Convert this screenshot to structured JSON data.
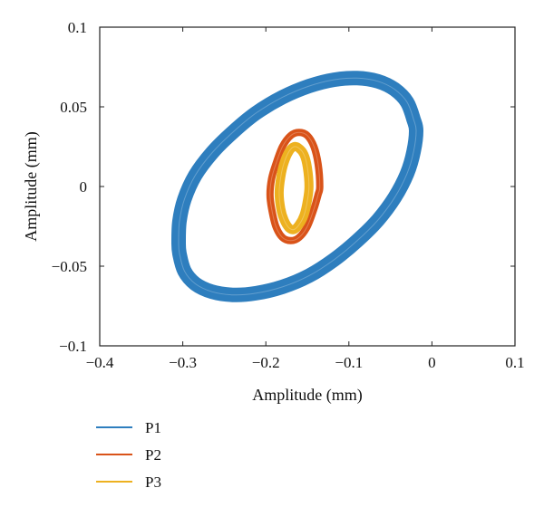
{
  "chart_data": {
    "type": "line",
    "title": "",
    "xlabel": "Amplitude (mm)",
    "ylabel": "Amplitude (mm)",
    "xlim": [
      -0.4,
      0.1
    ],
    "ylim": [
      -0.1,
      0.1
    ],
    "xticks": [
      -0.4,
      -0.3,
      -0.2,
      -0.1,
      0,
      0.1
    ],
    "xtick_labels": [
      "−0.4",
      "−0.3",
      "−0.2",
      "−0.1",
      "0",
      "0.1"
    ],
    "yticks": [
      -0.1,
      -0.05,
      0,
      0.05,
      0.1
    ],
    "ytick_labels": [
      "−0.1",
      "−0.05",
      "0",
      "0.05",
      "0.1"
    ],
    "grid": false,
    "legend_position": "bottom-left, outside plot",
    "series": [
      {
        "name": "P1",
        "color": "#2E7EBE",
        "x": [
          -0.305,
          -0.304,
          -0.298,
          -0.285,
          -0.265,
          -0.24,
          -0.212,
          -0.18,
          -0.148,
          -0.118,
          -0.09,
          -0.065,
          -0.045,
          -0.03,
          -0.022,
          -0.019,
          -0.022,
          -0.03,
          -0.045,
          -0.065,
          -0.09,
          -0.118,
          -0.148,
          -0.18,
          -0.212,
          -0.24,
          -0.265,
          -0.285,
          -0.298,
          -0.304,
          -0.305
        ],
        "y": [
          -0.035,
          -0.022,
          -0.008,
          0.007,
          0.021,
          0.034,
          0.046,
          0.056,
          0.063,
          0.067,
          0.068,
          0.066,
          0.061,
          0.053,
          0.042,
          0.035,
          0.022,
          0.008,
          -0.007,
          -0.021,
          -0.034,
          -0.046,
          -0.056,
          -0.063,
          -0.067,
          -0.068,
          -0.066,
          -0.061,
          -0.053,
          -0.042,
          -0.035
        ]
      },
      {
        "name": "P2",
        "color": "#D95319",
        "x": [
          -0.135,
          -0.137,
          -0.142,
          -0.15,
          -0.16,
          -0.17,
          -0.18,
          -0.188,
          -0.193,
          -0.195,
          -0.193,
          -0.188,
          -0.18,
          -0.17,
          -0.16,
          -0.15,
          -0.142,
          -0.137,
          -0.135
        ],
        "y": [
          0,
          0.014,
          0.025,
          0.032,
          0.034,
          0.032,
          0.025,
          0.014,
          0.005,
          -0.005,
          -0.014,
          -0.025,
          -0.032,
          -0.034,
          -0.032,
          -0.025,
          -0.014,
          -0.005,
          0
        ]
      },
      {
        "name": "P3",
        "color": "#EDB120",
        "x": [
          -0.148,
          -0.15,
          -0.154,
          -0.16,
          -0.166,
          -0.172,
          -0.178,
          -0.182,
          -0.184,
          -0.182,
          -0.178,
          -0.172,
          -0.166,
          -0.16,
          -0.154,
          -0.15,
          -0.148
        ],
        "y": [
          0,
          0.012,
          0.02,
          0.024,
          0.025,
          0.022,
          0.015,
          0.006,
          -0.004,
          -0.014,
          -0.021,
          -0.026,
          -0.027,
          -0.024,
          -0.018,
          -0.009,
          0
        ]
      }
    ]
  }
}
